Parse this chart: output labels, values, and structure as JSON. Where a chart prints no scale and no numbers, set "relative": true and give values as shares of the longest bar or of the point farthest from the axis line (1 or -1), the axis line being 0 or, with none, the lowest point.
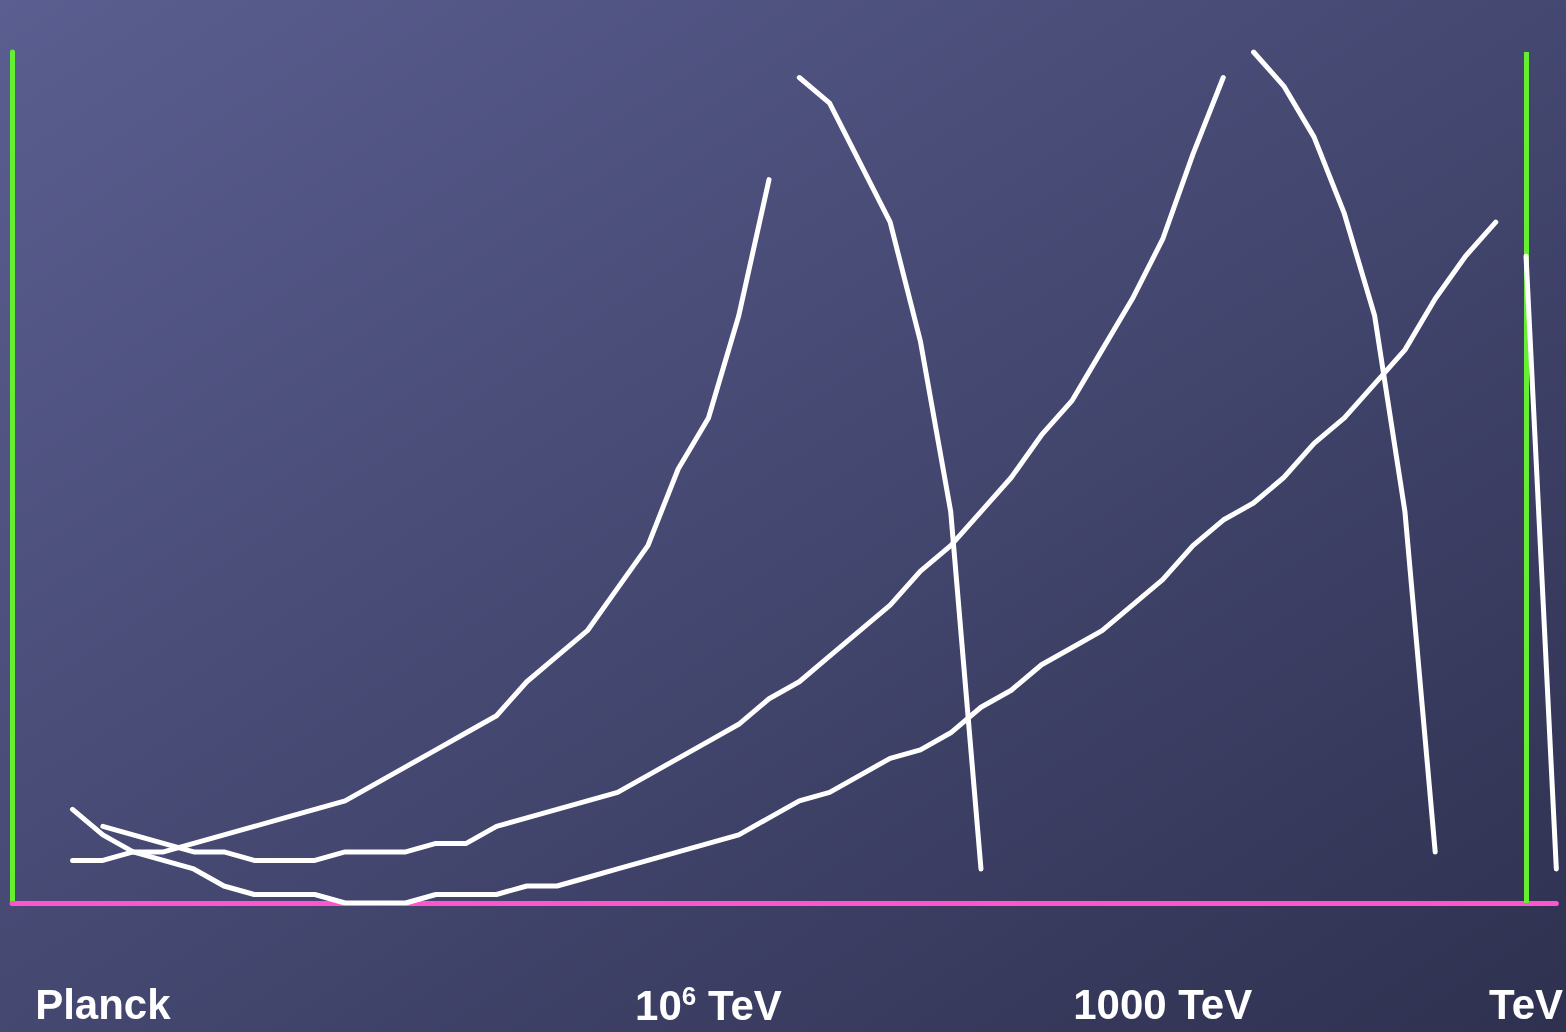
{
  "chart_data": {
    "type": "line",
    "relative": true,
    "categories": [
      null,
      null,
      null,
      "Planck",
      null,
      null,
      null,
      null,
      null,
      null,
      null,
      null,
      null,
      null,
      null,
      null,
      null,
      null,
      null,
      null,
      null,
      null,
      null,
      "10$^{6}$ TeV",
      null,
      null,
      null,
      null,
      null,
      null,
      null,
      null,
      null,
      null,
      null,
      null,
      null,
      null,
      "1000 TeV",
      null,
      null,
      null,
      null,
      null,
      null,
      null,
      null,
      null,
      null,
      null,
      "TeV",
      null
    ],
    "grid": false,
    "marker": "none",
    "line_style": "solid",
    "ref_lines": [
      {
        "axis": "x",
        "value": "TeV",
        "color": "#66ee33"
      }
    ],
    "series": [
      {
        "color": "#ffffff",
        "values": [
          null,
          null,
          0.05,
          0.05,
          0.06,
          0.06,
          0.07,
          0.08,
          0.09,
          0.1,
          0.11,
          0.12,
          0.14,
          0.16,
          0.18,
          0.2,
          0.22,
          0.26,
          0.29,
          0.32,
          0.37,
          0.42,
          0.51,
          0.57,
          0.69,
          0.85,
          null,
          null,
          null,
          null,
          null,
          null,
          null,
          null,
          null,
          null,
          null,
          null,
          null,
          null,
          null,
          null,
          null,
          null,
          null,
          null,
          null,
          null,
          null,
          null,
          null,
          null
        ]
      },
      {
        "color": "#ffffff",
        "values": [
          null,
          null,
          null,
          null,
          null,
          null,
          null,
          null,
          null,
          null,
          null,
          null,
          null,
          null,
          null,
          null,
          null,
          null,
          null,
          null,
          null,
          null,
          null,
          null,
          null,
          null,
          0.97,
          0.94,
          0.87,
          0.8,
          0.66,
          0.46,
          0.04,
          null,
          null,
          null,
          null,
          null,
          null,
          null,
          null,
          null,
          null,
          null,
          null,
          null,
          null,
          null,
          null,
          null,
          null,
          null
        ]
      },
      {
        "color": "#ffffff",
        "values": [
          null,
          null,
          null,
          0.09,
          0.08,
          0.07,
          0.06,
          0.06,
          0.05,
          0.05,
          0.05,
          0.06,
          0.06,
          0.06,
          0.07,
          0.07,
          0.09,
          0.1,
          0.11,
          0.12,
          0.13,
          0.15,
          0.17,
          0.19,
          0.21,
          0.24,
          0.26,
          0.29,
          0.32,
          0.35,
          0.39,
          0.42,
          0.46,
          0.5,
          0.55,
          0.59,
          0.65,
          0.71,
          0.78,
          0.88,
          0.97,
          null,
          null,
          null,
          null,
          null,
          null,
          null,
          null,
          null,
          null,
          null
        ]
      },
      {
        "color": "#ffffff",
        "values": [
          null,
          null,
          null,
          null,
          null,
          null,
          null,
          null,
          null,
          null,
          null,
          null,
          null,
          null,
          null,
          null,
          null,
          null,
          null,
          null,
          null,
          null,
          null,
          null,
          null,
          null,
          null,
          null,
          null,
          null,
          null,
          null,
          null,
          null,
          null,
          null,
          null,
          null,
          null,
          null,
          null,
          1.0,
          0.96,
          0.9,
          0.81,
          0.69,
          0.46,
          0.06,
          null,
          null,
          null,
          null
        ]
      },
      {
        "color": "#ffffff",
        "values": [
          null,
          null,
          0.11,
          0.08,
          0.06,
          0.05,
          0.04,
          0.02,
          0.01,
          0.01,
          0.01,
          0,
          0,
          0,
          0.01,
          0.01,
          0.01,
          0.02,
          0.02,
          0.03,
          0.04,
          0.05,
          0.06,
          0.07,
          0.08,
          0.1,
          0.12,
          0.13,
          0.15,
          0.17,
          0.18,
          0.2,
          0.23,
          0.25,
          0.28,
          0.3,
          0.32,
          0.35,
          0.38,
          0.42,
          0.45,
          0.47,
          0.5,
          0.54,
          0.57,
          0.61,
          0.65,
          0.71,
          0.76,
          0.8,
          null,
          null
        ]
      },
      {
        "color": "#ffffff",
        "values": [
          null,
          null,
          null,
          null,
          null,
          null,
          null,
          null,
          null,
          null,
          null,
          null,
          null,
          null,
          null,
          null,
          null,
          null,
          null,
          null,
          null,
          null,
          null,
          null,
          null,
          null,
          null,
          null,
          null,
          null,
          null,
          null,
          null,
          null,
          null,
          null,
          null,
          null,
          null,
          null,
          null,
          null,
          null,
          null,
          null,
          null,
          null,
          null,
          null,
          null,
          0.76,
          0.04
        ]
      }
    ]
  }
}
